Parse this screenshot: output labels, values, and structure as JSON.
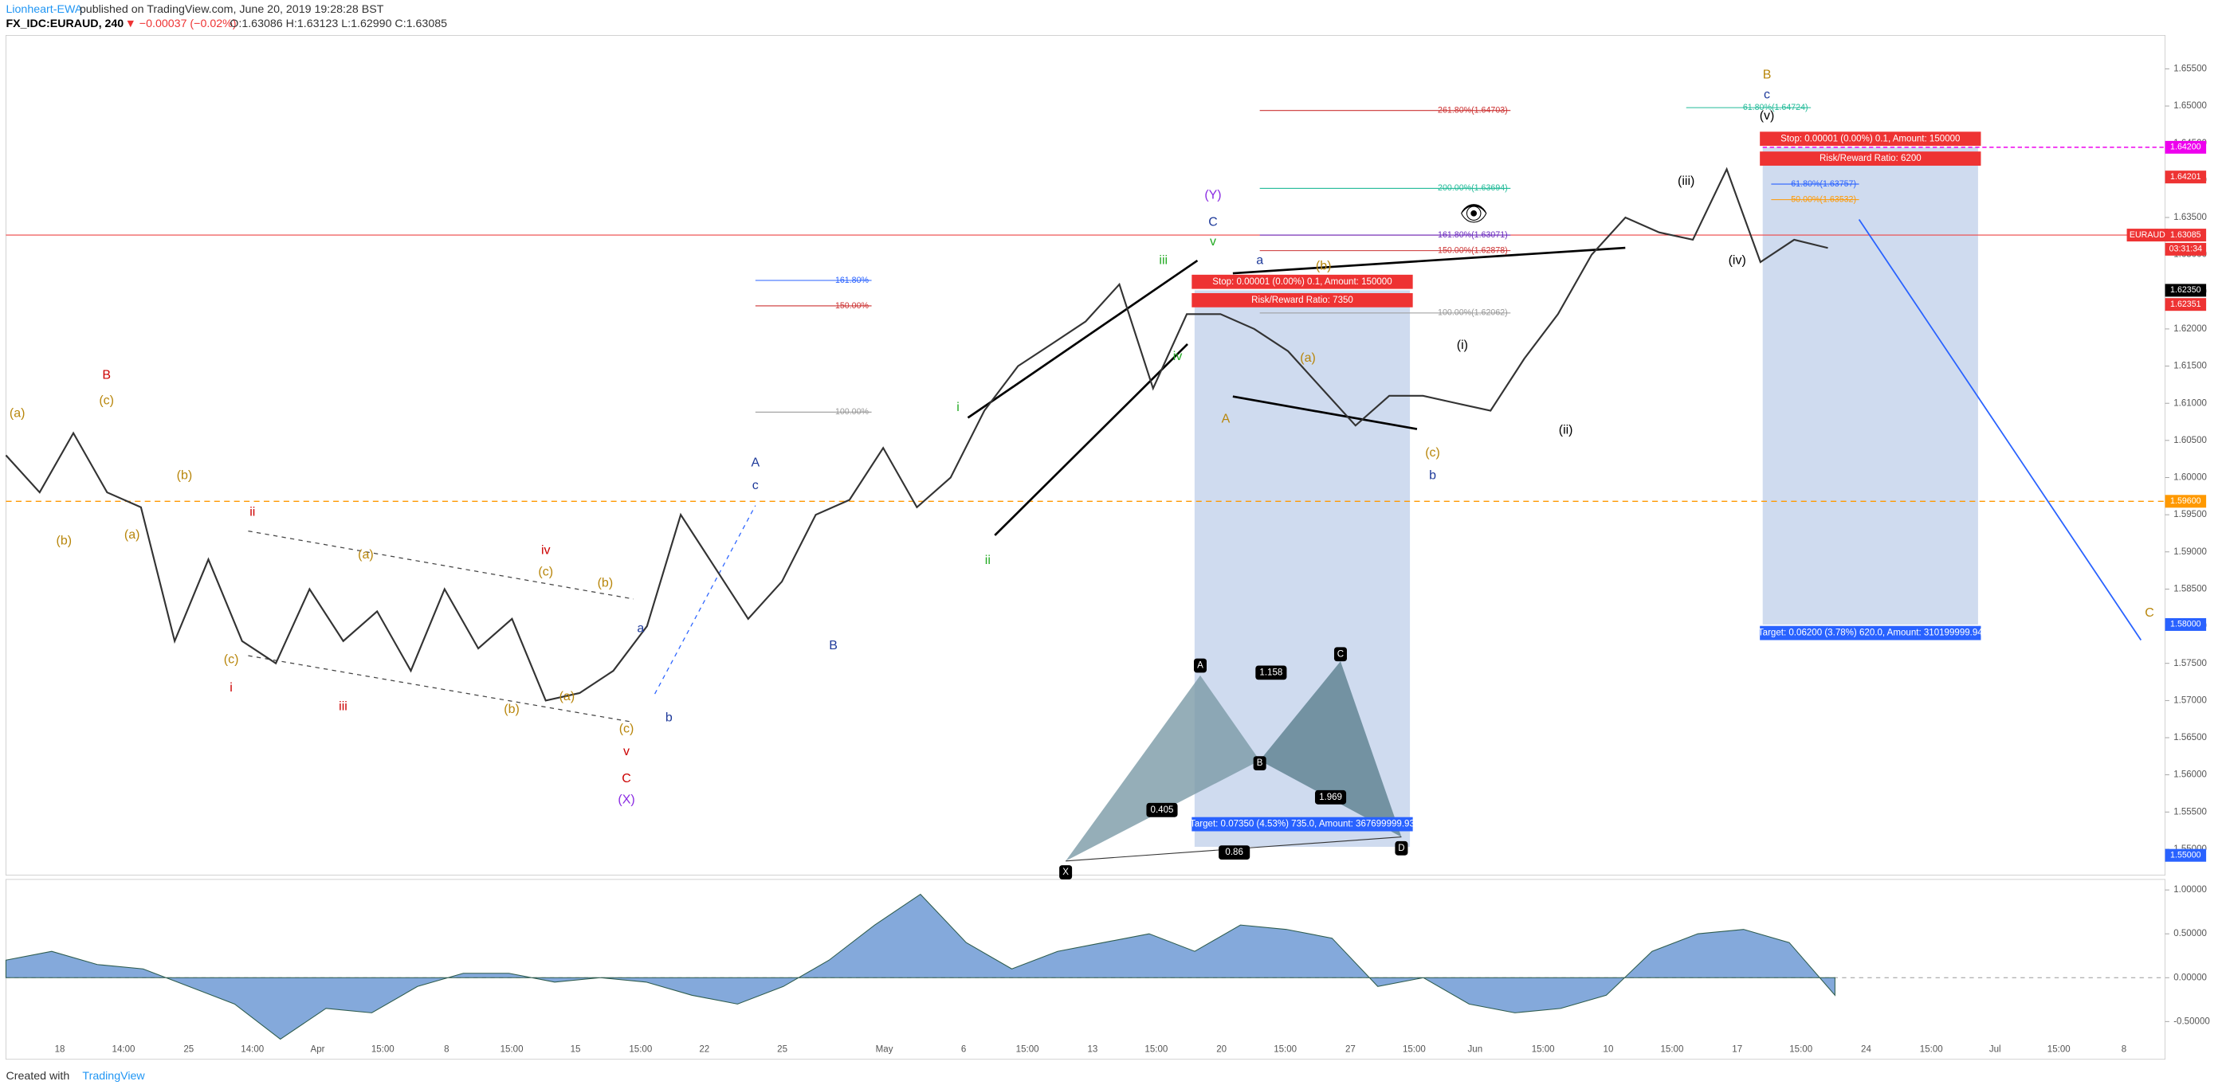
{
  "header": {
    "author": "Lionheart-EWA",
    "published": "published on TradingView.com, June 20, 2019 19:28:28 BST",
    "symbol": "FX_IDC:EURAUD, 240",
    "change": "▼ −0.00037 (−0.02%)",
    "ohlc": "O:1.63086 H:1.63123 L:1.62990 C:1.63085"
  },
  "footer": {
    "created": "Created with",
    "brand": "TradingView"
  },
  "chart_data": {
    "type": "line",
    "color": "#333333",
    "values": [
      1.603,
      1.598,
      1.606,
      1.598,
      1.596,
      1.578,
      1.589,
      1.578,
      1.575,
      1.585,
      1.578,
      1.582,
      1.574,
      1.585,
      1.577,
      1.581,
      1.57,
      1.571,
      1.574,
      1.58,
      1.595,
      1.588,
      1.581,
      1.586,
      1.595,
      1.597,
      1.604,
      1.596,
      1.6,
      1.609,
      1.615,
      1.618,
      1.621,
      1.626,
      1.612,
      1.622,
      1.622,
      1.62,
      1.617,
      1.612,
      1.607,
      1.611,
      1.611,
      1.61,
      1.609,
      1.616,
      1.622,
      1.63,
      1.635,
      1.633,
      1.632,
      1.6415,
      1.629,
      1.632,
      1.6309
    ],
    "ylim": [
      1.5465,
      1.6595
    ],
    "yticks": [
      {
        "value": 1.55,
        "label": "1.55000"
      },
      {
        "value": 1.555,
        "label": "1.55500"
      },
      {
        "value": 1.56,
        "label": "1.56000"
      },
      {
        "value": 1.565,
        "label": "1.56500"
      },
      {
        "value": 1.57,
        "label": "1.57000"
      },
      {
        "value": 1.575,
        "label": "1.57500"
      },
      {
        "value": 1.58,
        "label": "1.58000"
      },
      {
        "value": 1.585,
        "label": "1.58500"
      },
      {
        "value": 1.59,
        "label": "1.59000"
      },
      {
        "value": 1.595,
        "label": "1.59500"
      },
      {
        "value": 1.6,
        "label": "1.60000"
      },
      {
        "value": 1.605,
        "label": "1.60500"
      },
      {
        "value": 1.61,
        "label": "1.61000"
      },
      {
        "value": 1.615,
        "label": "1.61500"
      },
      {
        "value": 1.62,
        "label": "1.62000"
      },
      {
        "value": 1.625,
        "label": "1.62500"
      },
      {
        "value": 1.63,
        "label": "1.63000"
      },
      {
        "value": 1.635,
        "label": "1.63500"
      },
      {
        "value": 1.64,
        "label": "1.64000"
      },
      {
        "value": 1.645,
        "label": "1.64500"
      },
      {
        "value": 1.65,
        "label": "1.65000"
      },
      {
        "value": 1.655,
        "label": "1.65500"
      }
    ],
    "x_labels": [
      "18",
      "14:00",
      "25",
      "14:00",
      "Apr",
      "15:00",
      "8",
      "15:00",
      "15",
      "15:00",
      "22",
      "25",
      "May",
      "6",
      "15:00",
      "13",
      "15:00",
      "20",
      "15:00",
      "27",
      "15:00",
      "Jun",
      "15:00",
      "10",
      "15:00",
      "17",
      "15:00",
      "24",
      "15:00",
      "Jul",
      "15:00",
      "8"
    ],
    "price_badges": [
      "1.64200",
      "1.64201",
      "EURAUD",
      "1.63085",
      "03:31:34",
      "1.62350",
      "1.62351",
      "1.59600",
      "1.58000",
      "1.55000"
    ],
    "annotations": [
      "(a)",
      "B",
      "(c)",
      "(b)",
      "(a)",
      "(b)",
      "(c)",
      "i",
      "ii",
      "iii",
      "(a)",
      "iv",
      "(c)",
      "(b)",
      "(a)",
      "(b)",
      "(c)",
      "v",
      "C",
      "(X)",
      "A",
      "c",
      "B",
      "a",
      "b",
      "i",
      "ii",
      "iii",
      "iv",
      "v",
      "C",
      "(Y)",
      "a",
      "(b)",
      "(a)",
      "A",
      "(c)",
      "b",
      "(i)",
      "(ii)",
      "(iii)",
      "(iv)",
      "(v)",
      "c",
      "B",
      "C"
    ],
    "fib_labels": [
      "261.80%(1.64703)",
      "200.00%(1.63694)",
      "161.80%(1.63071)",
      "150.00%(1.62878)",
      "100.00%(1.62062)",
      "161.80%",
      "150.00%",
      "100.00%",
      "61.80%(1.64724)",
      "61.80%(1.63757)",
      "50.00%(1.63532)"
    ],
    "position_labels": [
      "Stop: 0.00001 (0.00%) 0.1, Amount: 150000",
      "Risk/Reward Ratio: 7350",
      "Target: 0.07350 (4.53%) 735.0, Amount: 367699999.93",
      "Stop: 0.00001 (0.00%) 0.1, Amount: 150000",
      "Risk/Reward Ratio: 6200",
      "Target: 0.06200 (3.78%) 620.0, Amount: 310199999.94"
    ],
    "harmonic": [
      "X",
      "A",
      "B",
      "C",
      "D",
      "1.158",
      "0.405",
      "1.969",
      "0.86"
    ],
    "oscillator": {
      "type": "area",
      "color": "#5b8ccf",
      "values": [
        0.2,
        0.3,
        0.15,
        0.1,
        -0.1,
        -0.3,
        -0.7,
        -0.35,
        -0.4,
        -0.1,
        0.05,
        0.05,
        -0.05,
        0.0,
        -0.05,
        -0.2,
        -0.3,
        -0.1,
        0.2,
        0.6,
        0.95,
        0.4,
        0.1,
        0.3,
        0.4,
        0.5,
        0.3,
        0.6,
        0.55,
        0.45,
        -0.1,
        0.0,
        -0.3,
        -0.4,
        -0.35,
        -0.2,
        0.3,
        0.5,
        0.55,
        0.4,
        -0.2
      ],
      "ylim": [
        -0.93,
        1.12
      ],
      "yticks": [
        {
          "value": 1,
          "label": "1.00000"
        },
        {
          "value": 0.5,
          "label": "0.50000"
        },
        {
          "value": 0,
          "label": "0.00000"
        },
        {
          "value": -0.5,
          "label": "-0.50000"
        }
      ]
    }
  }
}
